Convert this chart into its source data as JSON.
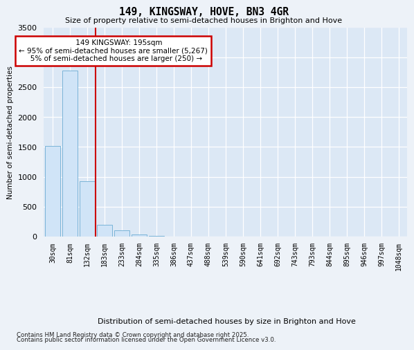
{
  "title1": "149, KINGSWAY, HOVE, BN3 4GR",
  "title2": "Size of property relative to semi-detached houses in Brighton and Hove",
  "xlabel": "Distribution of semi-detached houses by size in Brighton and Hove",
  "ylabel": "Number of semi-detached properties",
  "categories": [
    "30sqm",
    "81sqm",
    "132sqm",
    "183sqm",
    "233sqm",
    "284sqm",
    "335sqm",
    "386sqm",
    "437sqm",
    "488sqm",
    "539sqm",
    "590sqm",
    "641sqm",
    "692sqm",
    "743sqm",
    "793sqm",
    "844sqm",
    "895sqm",
    "946sqm",
    "997sqm",
    "1048sqm"
  ],
  "values": [
    1520,
    2780,
    920,
    200,
    100,
    30,
    15,
    0,
    0,
    0,
    0,
    0,
    0,
    0,
    0,
    0,
    0,
    0,
    0,
    0,
    0
  ],
  "bar_color": "#d0e4f7",
  "bar_edge_color": "#7ab4d8",
  "red_line_x": 2.5,
  "property_label": "149 KINGSWAY: 195sqm",
  "annotation_line1": "← 95% of semi-detached houses are smaller (5,267)",
  "annotation_line2": "5% of semi-detached houses are larger (250) →",
  "annotation_box_color": "#ffffff",
  "annotation_box_edge": "#cc0000",
  "red_line_color": "#cc0000",
  "ylim": [
    0,
    3500
  ],
  "yticks": [
    0,
    500,
    1000,
    1500,
    2000,
    2500,
    3000,
    3500
  ],
  "bg_color": "#dce8f5",
  "fig_color": "#edf2f8",
  "footer1": "Contains HM Land Registry data © Crown copyright and database right 2025.",
  "footer2": "Contains public sector information licensed under the Open Government Licence v3.0."
}
